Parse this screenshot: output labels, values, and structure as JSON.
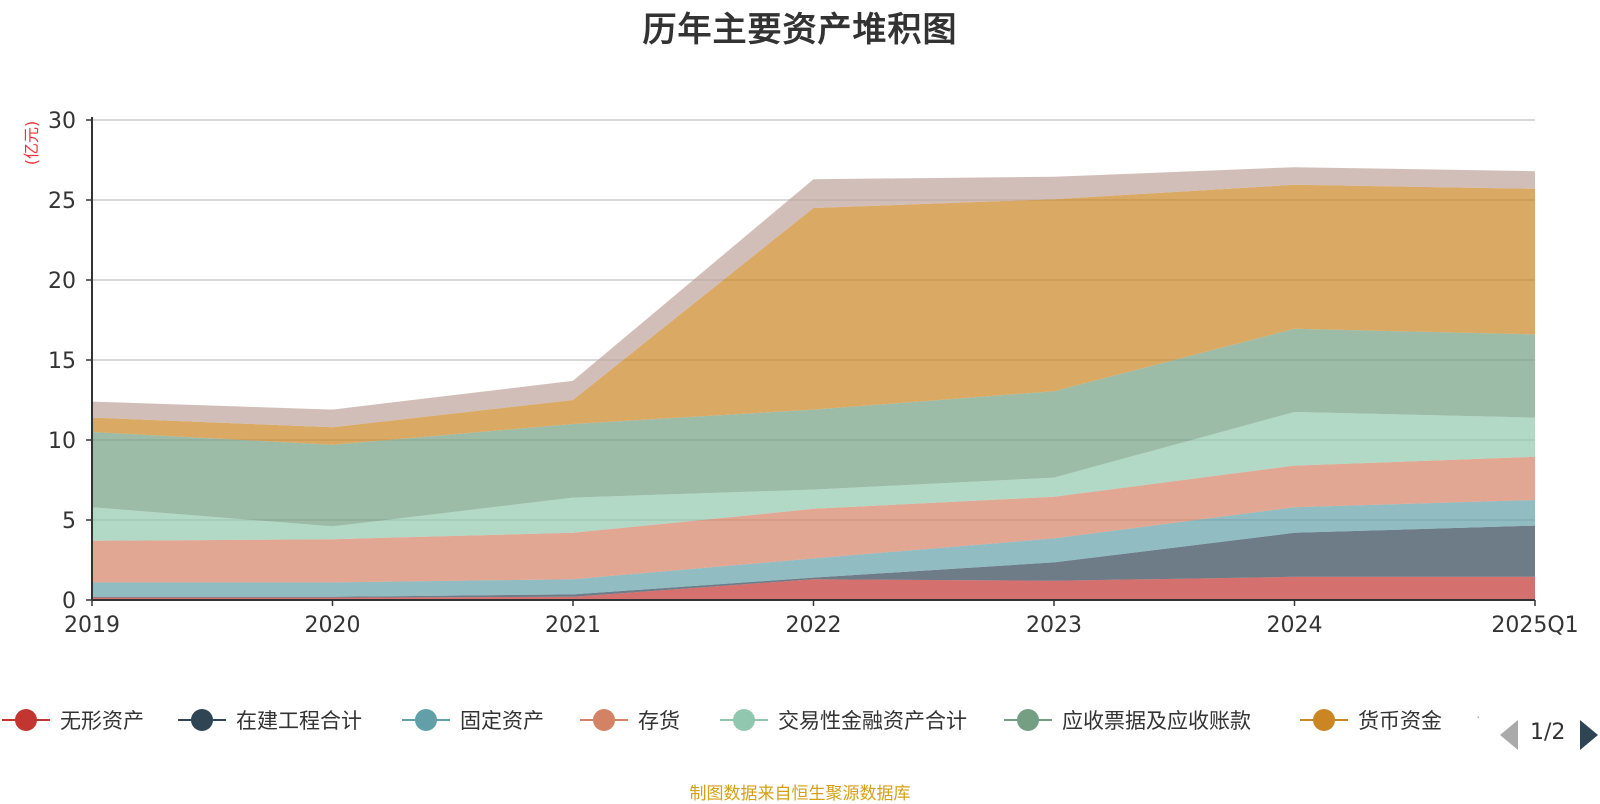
{
  "chart_data": {
    "type": "area",
    "stacked": true,
    "title": "历年主要资产堆积图",
    "ylabel": "(亿元)",
    "categories": [
      "2019",
      "2020",
      "2021",
      "2022",
      "2023",
      "2024",
      "2025Q1"
    ],
    "ylim": [
      0,
      30
    ],
    "yticks": [
      0,
      5,
      10,
      15,
      20,
      25,
      30
    ],
    "grid": true,
    "legend_position": "bottom",
    "series": [
      {
        "name": "无形资产",
        "color": "#c23531",
        "values": [
          0.15,
          0.15,
          0.2,
          1.3,
          1.2,
          1.45,
          1.45
        ]
      },
      {
        "name": "在建工程合计",
        "color": "#2f4554",
        "values": [
          0.05,
          0.05,
          0.15,
          0.1,
          1.15,
          2.75,
          3.2
        ]
      },
      {
        "name": "固定资产",
        "color": "#61a0a8",
        "values": [
          0.9,
          0.9,
          0.95,
          1.2,
          1.5,
          1.6,
          1.6
        ]
      },
      {
        "name": "存货",
        "color": "#d48265",
        "values": [
          2.6,
          2.7,
          2.9,
          3.1,
          2.6,
          2.6,
          2.7
        ]
      },
      {
        "name": "交易性金融资产合计",
        "color": "#91c7ae",
        "values": [
          2.1,
          0.8,
          2.2,
          1.2,
          1.2,
          3.35,
          2.45
        ]
      },
      {
        "name": "应收票据及应收账款",
        "color": "#749f83",
        "values": [
          4.7,
          5.1,
          4.6,
          5.0,
          5.4,
          5.2,
          5.2
        ]
      },
      {
        "name": "货币资金",
        "color": "#ca8622",
        "values": [
          0.9,
          1.1,
          1.5,
          12.6,
          12.0,
          9.0,
          9.1
        ]
      },
      {
        "name": "",
        "color": "#bda29a",
        "values": [
          1.0,
          1.1,
          1.2,
          1.8,
          1.4,
          1.1,
          1.1
        ]
      }
    ]
  },
  "legend": {
    "page": "1/2",
    "more": "·"
  },
  "footer": {
    "source": "制图数据来自恒生聚源数据库"
  }
}
